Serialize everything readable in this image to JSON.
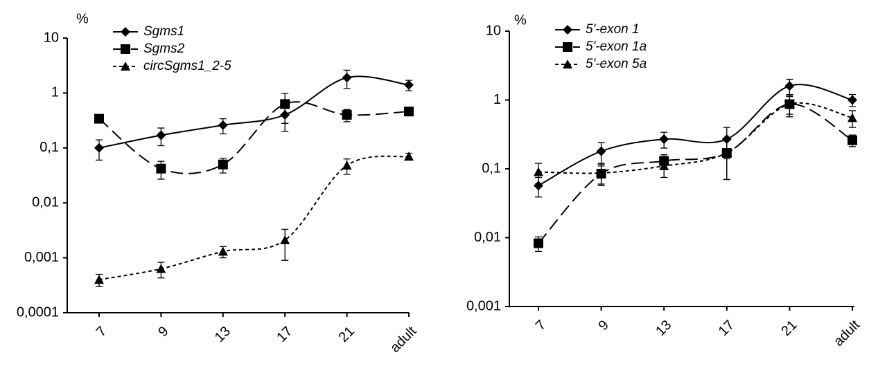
{
  "chart_data": [
    {
      "type": "line",
      "y_label": "%",
      "yscale": "log",
      "legend": "top-left",
      "categories": [
        "7",
        "9",
        "13",
        "17",
        "21",
        "adult"
      ],
      "ylim": [
        0.0001,
        10
      ],
      "yticks": [
        {
          "value": 0.0001,
          "label": "0,0001"
        },
        {
          "value": 0.001,
          "label": "0,001"
        },
        {
          "value": 0.01,
          "label": "0,01"
        },
        {
          "value": 0.1,
          "label": "0,1"
        },
        1,
        10
      ],
      "series": [
        {
          "name": "Sgms1",
          "color": "#000000",
          "marker": "diamond",
          "line_style": "solid",
          "values": [
            0.1,
            0.17,
            0.26,
            0.4,
            1.9,
            1.4
          ],
          "errors": [
            0.04,
            0.06,
            0.08,
            0.2,
            0.7,
            0.3
          ]
        },
        {
          "name": "Sgms2",
          "color": "#000000",
          "marker": "square",
          "line_style": "long-dash",
          "values": [
            0.34,
            0.042,
            0.05,
            0.63,
            0.4,
            0.46
          ],
          "errors": [
            0.05,
            0.015,
            0.015,
            0.35,
            0.1,
            0.06
          ]
        },
        {
          "name": "circSgms1_2-5",
          "color": "#000000",
          "marker": "triangle",
          "line_style": "short-dash",
          "values": [
            0.0004,
            0.00063,
            0.0013,
            0.0021,
            0.048,
            0.07
          ],
          "errors": [
            0.0001,
            0.0002,
            0.0003,
            0.0012,
            0.015,
            0.01
          ]
        }
      ]
    },
    {
      "type": "line",
      "y_label": "%",
      "yscale": "log",
      "legend": "top-left",
      "categories": [
        "7",
        "9",
        "13",
        "17",
        "21",
        "adult"
      ],
      "ylim": [
        0.001,
        10
      ],
      "yticks": [
        {
          "value": 0.001,
          "label": "0,001"
        },
        {
          "value": 0.01,
          "label": "0,01"
        },
        {
          "value": 0.1,
          "label": "0,1"
        },
        1,
        10
      ],
      "series": [
        {
          "name": "5'-exon 1",
          "color": "#000000",
          "marker": "diamond",
          "line_style": "solid",
          "values": [
            0.057,
            0.18,
            0.27,
            0.27,
            1.6,
            1.0
          ],
          "errors": [
            0.018,
            0.06,
            0.07,
            0.13,
            0.4,
            0.2
          ]
        },
        {
          "name": "5'-exon 1a",
          "color": "#000000",
          "marker": "square",
          "line_style": "long-dash",
          "values": [
            0.0083,
            0.085,
            0.13,
            0.17,
            0.87,
            0.26
          ],
          "errors": [
            0.002,
            0.025,
            0.03,
            0.1,
            0.25,
            0.05
          ]
        },
        {
          "name": "5'-exon 5a",
          "color": "#000000",
          "marker": "triangle",
          "line_style": "short-dash",
          "values": [
            0.09,
            0.087,
            0.11,
            0.17,
            0.87,
            0.55
          ],
          "errors": [
            0.03,
            0.03,
            0.035,
            0.1,
            0.3,
            0.15
          ]
        }
      ]
    }
  ]
}
